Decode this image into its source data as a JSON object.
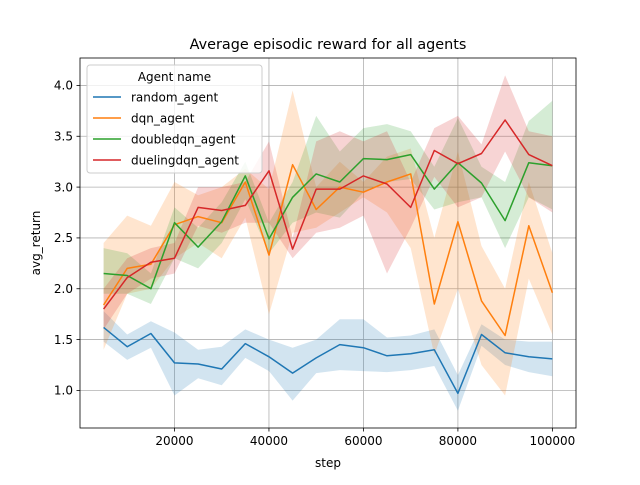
{
  "chart_data": {
    "type": "line",
    "title": "Average episodic reward for all agents",
    "xlabel": "step",
    "ylabel": "avg_return",
    "xlim": [
      0,
      105000
    ],
    "ylim": [
      0.63,
      4.27
    ],
    "xticks": [
      20000,
      40000,
      60000,
      80000,
      100000
    ],
    "xtick_labels": [
      "20000",
      "40000",
      "60000",
      "80000",
      "100000"
    ],
    "yticks": [
      1.0,
      1.5,
      2.0,
      2.5,
      3.0,
      3.5,
      4.0
    ],
    "ytick_labels": [
      "1.0",
      "1.5",
      "2.0",
      "2.5",
      "3.0",
      "3.5",
      "4.0"
    ],
    "grid": true,
    "legend": {
      "title": "Agent name",
      "placement": "top-left"
    },
    "x": [
      5000,
      10000,
      15000,
      20000,
      25000,
      30000,
      35000,
      40000,
      45000,
      50000,
      55000,
      60000,
      65000,
      70000,
      75000,
      80000,
      85000,
      90000,
      95000,
      100000
    ],
    "series": [
      {
        "name": "random_agent",
        "color": "#1f77b4",
        "values": [
          1.62,
          1.43,
          1.56,
          1.27,
          1.26,
          1.21,
          1.46,
          1.33,
          1.17,
          1.32,
          1.45,
          1.42,
          1.34,
          1.36,
          1.4,
          0.97,
          1.55,
          1.37,
          1.33,
          1.31
        ],
        "lower": [
          1.48,
          1.3,
          1.42,
          0.95,
          1.12,
          1.05,
          1.32,
          1.19,
          0.9,
          1.17,
          1.2,
          1.19,
          1.18,
          1.2,
          1.24,
          0.8,
          1.44,
          1.25,
          1.18,
          1.14
        ],
        "upper": [
          1.78,
          1.55,
          1.68,
          1.57,
          1.4,
          1.43,
          1.6,
          1.5,
          1.42,
          1.5,
          1.7,
          1.7,
          1.52,
          1.54,
          1.6,
          1.15,
          1.65,
          1.5,
          1.48,
          1.48
        ]
      },
      {
        "name": "dqn_agent",
        "color": "#ff7f0e",
        "values": [
          1.84,
          2.2,
          2.24,
          2.63,
          2.71,
          2.65,
          3.05,
          2.33,
          3.22,
          2.78,
          3.0,
          2.95,
          3.05,
          3.13,
          1.85,
          2.66,
          1.88,
          1.54,
          2.62,
          1.96
        ],
        "lower": [
          1.4,
          1.95,
          2.0,
          2.3,
          2.45,
          2.3,
          2.7,
          1.75,
          2.55,
          2.6,
          2.75,
          2.9,
          2.75,
          2.4,
          1.35,
          2.0,
          1.25,
          0.95,
          2.1,
          1.55
        ],
        "upper": [
          2.45,
          2.72,
          2.62,
          3.05,
          2.92,
          3.0,
          3.18,
          2.98,
          3.95,
          3.0,
          3.25,
          3.05,
          3.3,
          3.38,
          2.5,
          3.35,
          2.42,
          2.0,
          3.05,
          2.35
        ]
      },
      {
        "name": "doubledqn_agent",
        "color": "#2ca02c",
        "values": [
          2.15,
          2.13,
          2.0,
          2.65,
          2.41,
          2.66,
          3.11,
          2.49,
          2.9,
          3.13,
          3.05,
          3.28,
          3.27,
          3.32,
          2.98,
          3.24,
          3.04,
          2.67,
          3.24,
          3.21
        ],
        "lower": [
          1.95,
          1.95,
          1.85,
          2.3,
          2.2,
          2.45,
          2.88,
          2.35,
          2.65,
          2.75,
          2.7,
          2.95,
          3.05,
          3.08,
          2.78,
          2.85,
          2.9,
          2.4,
          2.9,
          2.78
        ],
        "upper": [
          2.4,
          2.35,
          2.15,
          2.8,
          2.6,
          2.85,
          3.25,
          2.65,
          3.05,
          3.7,
          3.35,
          3.58,
          3.62,
          3.55,
          3.2,
          3.68,
          3.2,
          3.05,
          3.65,
          3.85
        ]
      },
      {
        "name": "duelingdqn_agent",
        "color": "#d62728",
        "values": [
          1.8,
          2.11,
          2.26,
          2.3,
          2.8,
          2.77,
          2.82,
          3.16,
          2.39,
          2.98,
          2.98,
          3.11,
          3.03,
          2.8,
          3.36,
          3.23,
          3.33,
          3.66,
          3.32,
          3.21
        ],
        "lower": [
          1.6,
          1.95,
          2.1,
          2.15,
          2.62,
          2.55,
          2.65,
          2.65,
          2.3,
          2.55,
          2.6,
          2.72,
          2.15,
          2.6,
          3.1,
          2.8,
          2.9,
          3.35,
          2.9,
          2.75
        ],
        "upper": [
          2.0,
          2.3,
          2.4,
          2.45,
          3.0,
          3.0,
          3.05,
          3.45,
          2.5,
          3.45,
          3.55,
          3.45,
          3.55,
          3.05,
          3.58,
          3.7,
          3.42,
          4.1,
          3.55,
          3.5
        ]
      }
    ]
  }
}
